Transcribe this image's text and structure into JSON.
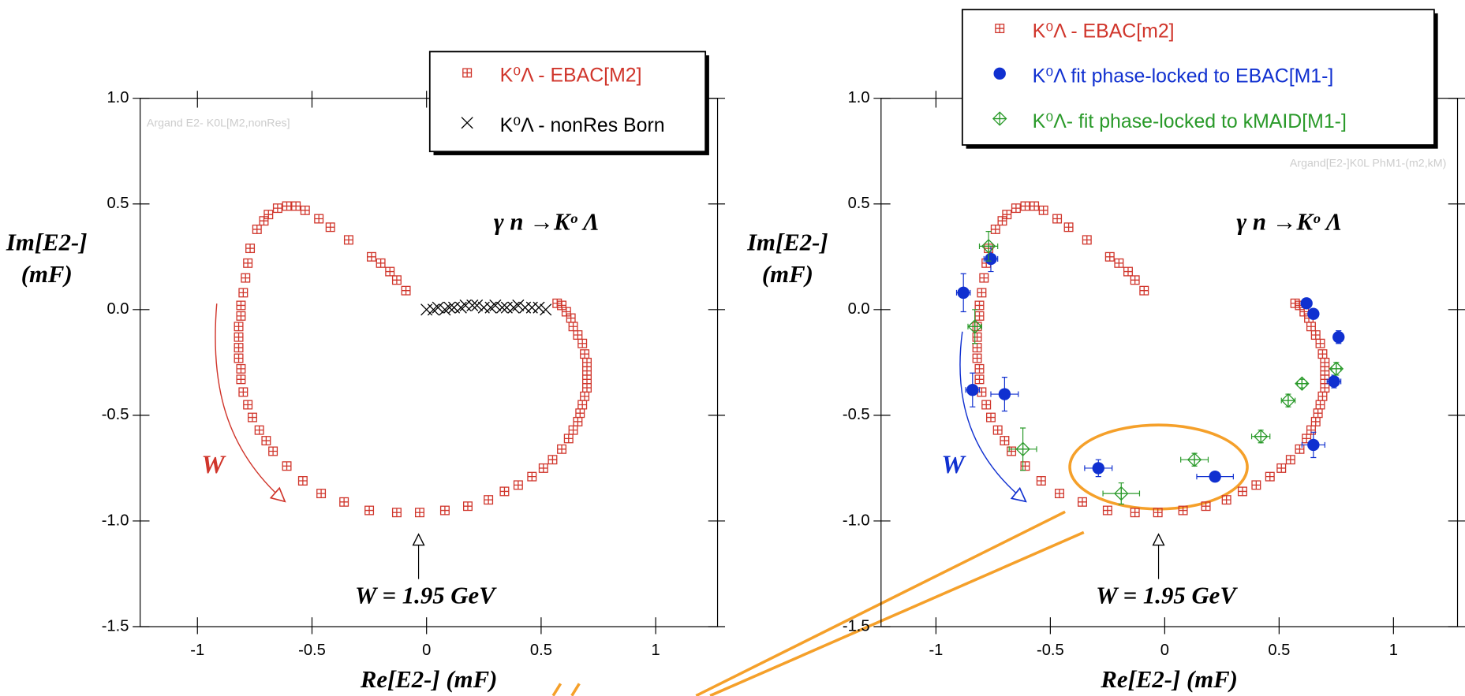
{
  "chart_data": [
    {
      "type": "scatter",
      "xlabel": "Re[E2-]   (mF)",
      "ylabel": [
        "Im[E2-]",
        "(mF)"
      ],
      "xlim": [
        -1.25,
        1.27
      ],
      "ylim": [
        -1.5,
        1.0
      ],
      "xticks": [
        -1,
        -0.5,
        0,
        0.5,
        1
      ],
      "yticks": [
        {
          "value": 1.0,
          "label": "1.0"
        },
        0.5,
        {
          "value": 0.0,
          "label": "0.0"
        },
        -0.5,
        {
          "value": -1.0,
          "label": "-1.0"
        },
        -1.5
      ],
      "legend": "top-right",
      "annotations": [
        {
          "text": "γ n →Kᵒ Λ",
          "color": "#000"
        },
        {
          "text": "W",
          "color": "#d0352b"
        },
        {
          "text": "W = 1.95 GeV",
          "color": "#000"
        },
        {
          "text": "Argand E2- K0L[M2,nonRes]",
          "color": "#ccc"
        }
      ],
      "series": [
        {
          "name": "K⁰Λ - EBAC[M2]",
          "color": "#d0352b",
          "marker": "square-plus",
          "x": [
            -0.09,
            -0.13,
            -0.16,
            -0.2,
            -0.24,
            -0.34,
            -0.42,
            -0.47,
            -0.53,
            -0.57,
            -0.61,
            -0.65,
            -0.69,
            -0.71,
            -0.74,
            -0.77,
            -0.78,
            -0.79,
            -0.8,
            -0.81,
            -0.81,
            -0.82,
            -0.82,
            -0.82,
            -0.82,
            -0.81,
            -0.81,
            -0.8,
            -0.78,
            -0.76,
            -0.73,
            -0.7,
            -0.67,
            -0.61,
            -0.54,
            -0.46,
            -0.36,
            -0.25,
            -0.13,
            -0.03,
            0.08,
            0.18,
            0.27,
            0.34,
            0.4,
            0.46,
            0.51,
            0.55,
            0.59,
            0.62,
            0.64,
            0.66,
            0.67,
            0.68,
            0.69,
            0.7,
            0.7,
            0.7,
            0.7,
            0.69,
            0.68,
            0.66,
            0.64,
            0.63,
            0.61,
            0.59,
            0.57
          ],
          "values": [
            0.09,
            0.14,
            0.18,
            0.22,
            0.25,
            0.33,
            0.39,
            0.43,
            0.47,
            0.49,
            0.49,
            0.48,
            0.45,
            0.42,
            0.38,
            0.29,
            0.22,
            0.15,
            0.08,
            0.02,
            -0.03,
            -0.08,
            -0.13,
            -0.18,
            -0.23,
            -0.28,
            -0.33,
            -0.39,
            -0.45,
            -0.51,
            -0.57,
            -0.62,
            -0.67,
            -0.74,
            -0.81,
            -0.87,
            -0.91,
            -0.95,
            -0.96,
            -0.96,
            -0.95,
            -0.93,
            -0.9,
            -0.86,
            -0.83,
            -0.79,
            -0.75,
            -0.71,
            -0.66,
            -0.61,
            -0.57,
            -0.53,
            -0.49,
            -0.45,
            -0.41,
            -0.37,
            -0.33,
            -0.29,
            -0.25,
            -0.21,
            -0.16,
            -0.12,
            -0.08,
            -0.04,
            -0.01,
            0.02,
            0.03
          ]
        },
        {
          "name": "K⁰Λ - nonRes Born",
          "color": "#000",
          "marker": "x",
          "x": [
            0,
            0.03,
            0.05,
            0.08,
            0.1,
            0.12,
            0.15,
            0.17,
            0.2,
            0.22,
            0.25,
            0.28,
            0.3,
            0.33,
            0.35,
            0.38,
            0.4,
            0.43,
            0.46,
            0.49,
            0.52
          ],
          "values": [
            0,
            0,
            0.01,
            0,
            0.01,
            0.01,
            0.01,
            0.02,
            0.02,
            0.02,
            0.01,
            0.01,
            0.02,
            0.01,
            0.01,
            0.01,
            0.02,
            0.01,
            0.01,
            0.01,
            0
          ]
        }
      ]
    },
    {
      "type": "scatter",
      "xlabel": "Re[E2-]   (mF)",
      "ylabel": [
        "Im[E2-]",
        "(mF)"
      ],
      "xlim": [
        -1.24,
        1.28
      ],
      "ylim": [
        -1.5,
        1.0
      ],
      "xticks": [
        -1,
        -0.5,
        0,
        0.5,
        1
      ],
      "yticks": [
        {
          "value": 1.0,
          "label": "1.0"
        },
        0.5,
        {
          "value": 0.0,
          "label": "0.0"
        },
        -0.5,
        {
          "value": -1.0,
          "label": "-1.0"
        },
        -1.5
      ],
      "legend": "top-right",
      "annotations": [
        {
          "text": "γ n →Kᵒ Λ",
          "color": "#000"
        },
        {
          "text": "W",
          "color": "#1030d0"
        },
        {
          "text": "W = 1.95 GeV",
          "color": "#000"
        },
        {
          "text": "Argand[E2-]K0L PhM1-(m2,kM)",
          "color": "#ccc"
        }
      ],
      "series": [
        {
          "name": "K⁰Λ - EBAC[m2]",
          "color": "#d0352b",
          "marker": "square-plus",
          "x": [
            -0.09,
            -0.13,
            -0.16,
            -0.2,
            -0.24,
            -0.34,
            -0.42,
            -0.47,
            -0.53,
            -0.57,
            -0.61,
            -0.65,
            -0.69,
            -0.71,
            -0.74,
            -0.77,
            -0.78,
            -0.79,
            -0.8,
            -0.81,
            -0.81,
            -0.82,
            -0.82,
            -0.82,
            -0.82,
            -0.81,
            -0.81,
            -0.8,
            -0.78,
            -0.76,
            -0.73,
            -0.7,
            -0.67,
            -0.61,
            -0.54,
            -0.46,
            -0.36,
            -0.25,
            -0.13,
            -0.03,
            0.08,
            0.18,
            0.27,
            0.34,
            0.4,
            0.46,
            0.51,
            0.55,
            0.59,
            0.62,
            0.64,
            0.66,
            0.67,
            0.68,
            0.69,
            0.7,
            0.7,
            0.7,
            0.7,
            0.69,
            0.68,
            0.66,
            0.64,
            0.63,
            0.61,
            0.59,
            0.57
          ],
          "values": [
            0.09,
            0.14,
            0.18,
            0.22,
            0.25,
            0.33,
            0.39,
            0.43,
            0.47,
            0.49,
            0.49,
            0.48,
            0.45,
            0.42,
            0.38,
            0.29,
            0.22,
            0.15,
            0.08,
            0.02,
            -0.03,
            -0.08,
            -0.13,
            -0.18,
            -0.23,
            -0.28,
            -0.33,
            -0.39,
            -0.45,
            -0.51,
            -0.57,
            -0.62,
            -0.67,
            -0.74,
            -0.81,
            -0.87,
            -0.91,
            -0.95,
            -0.96,
            -0.96,
            -0.95,
            -0.93,
            -0.9,
            -0.86,
            -0.83,
            -0.79,
            -0.75,
            -0.71,
            -0.66,
            -0.61,
            -0.57,
            -0.53,
            -0.49,
            -0.45,
            -0.41,
            -0.37,
            -0.33,
            -0.29,
            -0.25,
            -0.21,
            -0.16,
            -0.12,
            -0.08,
            -0.04,
            -0.01,
            0.02,
            0.03
          ]
        },
        {
          "name": "K⁰Λ fit phase-locked to EBAC[M1-]",
          "color": "#1030d0",
          "marker": "circle",
          "x": [
            -0.88,
            -0.76,
            -0.84,
            -0.7,
            -0.29,
            0.22,
            0.62,
            0.65,
            0.76,
            0.74,
            0.65
          ],
          "values": [
            0.08,
            0.24,
            -0.38,
            -0.4,
            -0.75,
            -0.79,
            0.03,
            -0.02,
            -0.13,
            -0.34,
            -0.64
          ],
          "xerr": [
            0.03,
            0.03,
            0.03,
            0.06,
            0.06,
            0.08,
            0.01,
            0.01,
            0.02,
            0.03,
            0.05
          ],
          "yerr": [
            0.09,
            0.06,
            0.08,
            0.08,
            0.04,
            0.02,
            0.02,
            0.02,
            0.03,
            0.03,
            0.06
          ]
        },
        {
          "name": "K⁰Λ- fit phase-locked to kMAID[M1-]",
          "color": "#2a9a2a",
          "marker": "diamond-plus",
          "x": [
            -0.77,
            -0.83,
            -0.62,
            -0.19,
            0.13,
            0.42,
            0.54,
            0.6,
            0.75
          ],
          "values": [
            0.3,
            -0.08,
            -0.66,
            -0.87,
            -0.71,
            -0.6,
            -0.43,
            -0.35,
            -0.28
          ],
          "xerr": [
            0.04,
            0.03,
            0.06,
            0.08,
            0.06,
            0.04,
            0.03,
            0.02,
            0.02
          ],
          "yerr": [
            0.07,
            0.08,
            0.1,
            0.05,
            0.03,
            0.03,
            0.03,
            0.02,
            0.03
          ]
        }
      ]
    }
  ]
}
